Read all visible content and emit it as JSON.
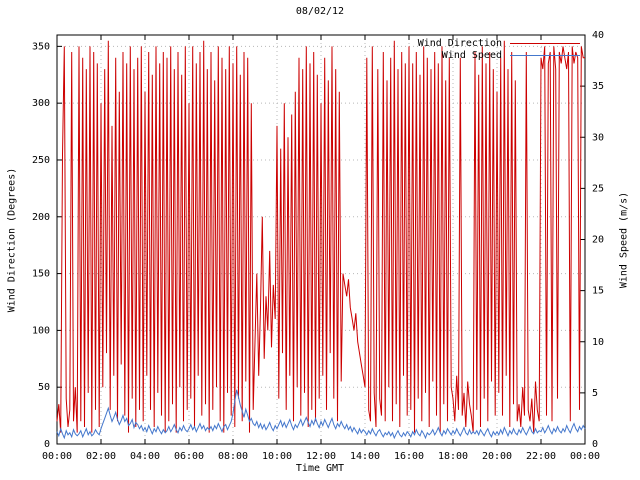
{
  "title": "08/02/12",
  "legend": {
    "items": [
      {
        "label": "Wind Direction",
        "color": "#cc0000"
      },
      {
        "label": "Wind Speed",
        "color": "#4477cc"
      }
    ]
  },
  "chart_data": {
    "type": "line",
    "title": "08/02/12",
    "xlabel": "Time GMT",
    "grid": true,
    "legend_position": "top-right",
    "x_range_hours": [
      0,
      24
    ],
    "x_step_minutes": 5,
    "x_tick_hours": [
      0,
      2,
      4,
      6,
      8,
      10,
      12,
      14,
      16,
      18,
      20,
      22,
      24
    ],
    "x_tick_labels": [
      "00:00",
      "02:00",
      "04:00",
      "06:00",
      "08:00",
      "10:00",
      "12:00",
      "14:00",
      "16:00",
      "18:00",
      "20:00",
      "22:00",
      "00:00"
    ],
    "y_left": {
      "label": "Wind Direction (Degrees)",
      "range": [
        0,
        360
      ],
      "ticks": [
        0,
        50,
        100,
        150,
        200,
        250,
        300,
        350
      ]
    },
    "y_right": {
      "label": "Wind Speed (m/s)",
      "range": [
        0,
        40
      ],
      "ticks": [
        0,
        5,
        10,
        15,
        20,
        25,
        30,
        35,
        40
      ]
    },
    "series": [
      {
        "name": "Wind Direction",
        "axis": "left",
        "color": "#cc0000",
        "values": [
          20,
          35,
          10,
          255,
          350,
          40,
          15,
          30,
          345,
          20,
          50,
          10,
          350,
          20,
          340,
          15,
          330,
          45,
          350,
          10,
          345,
          30,
          335,
          15,
          300,
          50,
          330,
          80,
          355,
          30,
          280,
          60,
          340,
          20,
          310,
          70,
          345,
          25,
          335,
          10,
          350,
          40,
          330,
          15,
          340,
          30,
          350,
          20,
          310,
          60,
          345,
          30,
          325,
          15,
          350,
          45,
          335,
          25,
          345,
          10,
          340,
          20,
          350,
          35,
          330,
          10,
          345,
          50,
          325,
          20,
          350,
          30,
          300,
          40,
          350,
          15,
          335,
          60,
          345,
          25,
          355,
          35,
          330,
          10,
          345,
          30,
          320,
          50,
          350,
          20,
          340,
          10,
          330,
          45,
          350,
          25,
          335,
          15,
          350,
          40,
          325,
          20,
          345,
          55,
          340,
          10,
          300,
          30,
          90,
          150,
          60,
          120,
          200,
          75,
          130,
          100,
          170,
          85,
          140,
          110,
          280,
          40,
          260,
          80,
          300,
          30,
          270,
          60,
          290,
          20,
          310,
          50,
          340,
          25,
          330,
          45,
          350,
          15,
          335,
          30,
          345,
          20,
          325,
          40,
          300,
          60,
          340,
          30,
          320,
          80,
          350,
          40,
          330,
          20,
          310,
          55,
          150,
          140,
          130,
          145,
          120,
          110,
          100,
          115,
          90,
          80,
          70,
          60,
          50,
          340,
          30,
          20,
          350,
          45,
          15,
          330,
          40,
          25,
          345,
          20,
          320,
          50,
          340,
          20,
          355,
          35,
          330,
          15,
          345,
          60,
          335,
          25,
          350,
          30,
          335,
          10,
          345,
          40,
          325,
          20,
          350,
          45,
          340,
          15,
          330,
          55,
          345,
          25,
          335,
          10,
          350,
          35,
          320,
          20,
          340,
          50,
          40,
          20,
          60,
          30,
          340,
          25,
          45,
          15,
          55,
          35,
          25,
          10,
          345,
          30,
          325,
          15,
          350,
          40,
          335,
          20,
          345,
          55,
          330,
          25,
          310,
          45,
          340,
          25,
          355,
          60,
          330,
          15,
          345,
          35,
          320,
          20,
          35,
          15,
          50,
          25,
          345,
          30,
          20,
          40,
          10,
          55,
          30,
          20,
          340,
          330,
          350,
          25,
          335,
          345,
          20,
          350,
          330,
          40,
          345,
          335,
          350,
          340,
          330,
          345,
          20,
          350,
          335,
          345,
          340,
          30,
          350,
          340,
          340
        ]
      },
      {
        "name": "Wind Speed",
        "axis": "right",
        "color": "#4477cc",
        "values": [
          1.2,
          0.8,
          1.5,
          1.0,
          0.6,
          1.3,
          0.9,
          1.1,
          0.7,
          1.4,
          1.0,
          0.8,
          1.0,
          1.3,
          0.7,
          1.1,
          1.5,
          0.9,
          1.2,
          0.8,
          1.0,
          1.4,
          1.1,
          0.9,
          1.5,
          2.0,
          2.5,
          3.0,
          3.5,
          2.8,
          2.2,
          2.6,
          3.1,
          2.4,
          1.9,
          2.3,
          2.8,
          2.2,
          2.5,
          1.8,
          2.0,
          2.4,
          1.6,
          2.1,
          1.9,
          1.5,
          1.8,
          1.3,
          1.6,
          1.2,
          1.8,
          1.4,
          1.0,
          1.5,
          1.2,
          1.7,
          1.3,
          1.0,
          1.4,
          1.1,
          1.3,
          1.7,
          1.2,
          1.5,
          1.9,
          1.4,
          1.1,
          1.6,
          1.3,
          1.8,
          1.4,
          1.2,
          1.5,
          1.9,
          1.4,
          1.7,
          1.2,
          1.6,
          2.0,
          1.5,
          1.8,
          1.3,
          1.6,
          1.4,
          1.7,
          1.3,
          1.8,
          1.5,
          2.0,
          1.6,
          1.2,
          1.7,
          1.9,
          1.4,
          1.8,
          2.2,
          3.0,
          4.2,
          5.3,
          4.6,
          3.8,
          3.2,
          2.6,
          3.4,
          2.8,
          2.2,
          2.5,
          2.0,
          1.8,
          2.2,
          1.6,
          2.0,
          1.5,
          1.9,
          1.4,
          1.7,
          2.1,
          1.6,
          1.3,
          1.8,
          1.5,
          1.9,
          2.3,
          1.7,
          2.1,
          1.6,
          2.0,
          2.4,
          1.8,
          1.4,
          1.9,
          1.6,
          2.0,
          2.4,
          1.8,
          2.2,
          2.6,
          2.1,
          1.7,
          2.3,
          1.9,
          2.5,
          2.0,
          1.6,
          2.2,
          1.8,
          2.4,
          2.0,
          1.6,
          2.1,
          2.5,
          1.9,
          1.5,
          2.0,
          1.7,
          2.2,
          1.8,
          1.5,
          1.9,
          1.4,
          1.7,
          1.2,
          1.6,
          1.3,
          1.0,
          1.5,
          1.1,
          1.4,
          1.2,
          0.9,
          1.3,
          1.0,
          1.5,
          1.1,
          0.8,
          1.2,
          1.4,
          1.0,
          0.7,
          1.1,
          0.9,
          1.2,
          0.8,
          1.1,
          0.6,
          1.0,
          1.3,
          0.9,
          0.7,
          1.1,
          0.8,
          1.2,
          1.0,
          0.7,
          1.2,
          0.9,
          1.4,
          1.0,
          0.8,
          1.3,
          1.0,
          0.6,
          1.1,
          0.9,
          1.1,
          1.4,
          0.9,
          1.2,
          1.6,
          1.1,
          0.8,
          1.3,
          1.0,
          1.5,
          1.2,
          0.9,
          1.3,
          1.0,
          1.5,
          1.1,
          0.8,
          1.2,
          1.6,
          1.1,
          0.9,
          1.4,
          1.0,
          1.2,
          1.0,
          1.3,
          0.9,
          1.4,
          1.1,
          0.8,
          1.2,
          1.5,
          1.0,
          0.7,
          1.2,
          0.9,
          1.2,
          0.9,
          1.4,
          1.0,
          1.6,
          1.2,
          0.8,
          1.3,
          1.0,
          1.5,
          1.1,
          0.9,
          1.4,
          1.1,
          1.6,
          1.2,
          0.9,
          1.3,
          1.7,
          1.2,
          1.0,
          1.5,
          1.1,
          1.3,
          1.2,
          1.6,
          1.1,
          1.4,
          1.8,
          1.3,
          1.0,
          1.5,
          1.2,
          1.7,
          1.3,
          1.1,
          1.5,
          1.2,
          1.8,
          1.4,
          1.1,
          1.6,
          2.0,
          1.5,
          1.2,
          1.7,
          1.4,
          1.8,
          1.5
        ]
      }
    ]
  }
}
